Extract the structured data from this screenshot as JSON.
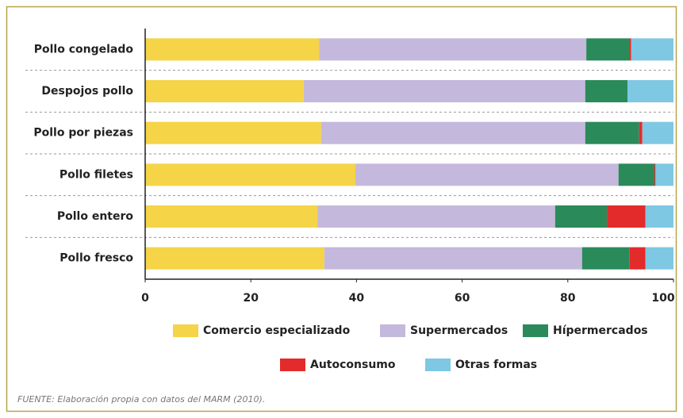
{
  "chart_data": {
    "type": "stacked-bar-horizontal",
    "categories": [
      "Pollo congelado",
      "Despojos pollo",
      "Pollo por piezas",
      "Pollo filetes",
      "Pollo entero",
      "Pollo fresco"
    ],
    "series": [
      {
        "name": "Comercio especializado",
        "color": "#f5d447",
        "values": [
          32.9,
          30.0,
          33.3,
          39.8,
          32.6,
          33.9
        ]
      },
      {
        "name": "Supermercados",
        "color": "#c4b8dc",
        "values": [
          50.6,
          53.3,
          50.0,
          49.8,
          45.0,
          48.8
        ]
      },
      {
        "name": "Hípermercados",
        "color": "#2b8a5a",
        "values": [
          8.1,
          8.0,
          10.2,
          6.8,
          9.8,
          9.0
        ]
      },
      {
        "name": "Autoconsumo",
        "color": "#e32b2b",
        "values": [
          0.4,
          0,
          0.6,
          0.2,
          7.3,
          3.0
        ]
      },
      {
        "name": "Otras formas",
        "color": "#7ec8e3",
        "values": [
          8.0,
          8.7,
          5.9,
          3.4,
          5.3,
          5.3
        ]
      }
    ],
    "xlim": [
      0,
      100
    ],
    "xticks": [
      0,
      20,
      40,
      60,
      80,
      100
    ],
    "source": "FUENTE: Elaboración propia con datos del MARM (2010)."
  }
}
